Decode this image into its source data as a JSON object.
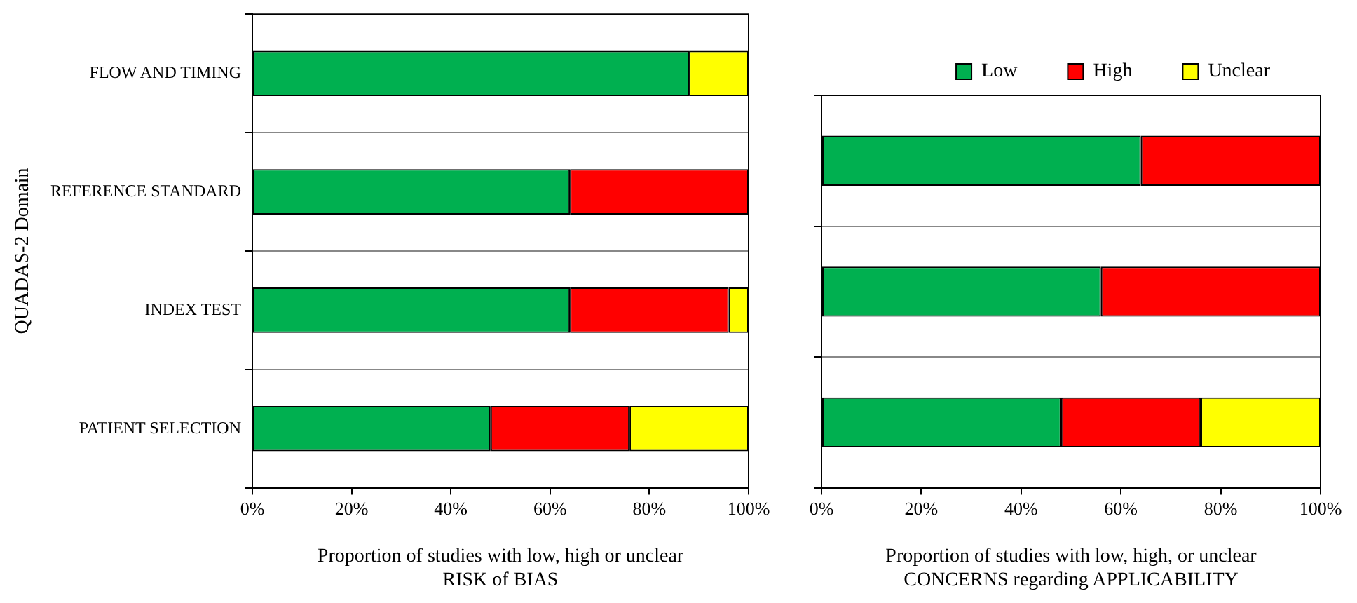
{
  "chart_data": [
    {
      "type": "bar",
      "orientation": "horizontal",
      "stacked": true,
      "xlabel": "Proportion of studies with low, high or unclear\nRISK of BIAS",
      "ylabel": "QUADAS-2 Domain",
      "categories": [
        "FLOW AND TIMING",
        "REFERENCE STANDARD",
        "INDEX TEST",
        "PATIENT SELECTION"
      ],
      "series": [
        {
          "color": "#00b050",
          "values": [
            88,
            64,
            64,
            48
          ]
        },
        {
          "color": "#ff0000",
          "values": [
            null,
            36,
            32,
            28
          ]
        },
        {
          "color": "#ffff00",
          "values": [
            12,
            null,
            4,
            24
          ]
        }
      ],
      "xlim": [
        0,
        100
      ],
      "xticks": [
        {
          "value": 0,
          "label": "0%"
        },
        {
          "value": 20,
          "label": "20%"
        },
        {
          "value": 40,
          "label": "40%"
        },
        {
          "value": 60,
          "label": "60%"
        },
        {
          "value": 80,
          "label": "80%"
        },
        {
          "value": 100,
          "label": "100%"
        }
      ],
      "grid": "y",
      "legend": false
    },
    {
      "type": "bar",
      "orientation": "horizontal",
      "stacked": true,
      "xlabel": "Proportion of studies with low, high, or unclear\nCONCERNS regarding APPLICABILITY",
      "categories": [
        null,
        null,
        null
      ],
      "series": [
        {
          "name": "Low",
          "color": "#00b050",
          "values": [
            64,
            56,
            48
          ]
        },
        {
          "name": "High",
          "color": "#ff0000",
          "values": [
            36,
            44,
            28
          ]
        },
        {
          "name": "Unclear",
          "color": "#ffff00",
          "values": [
            null,
            null,
            24
          ]
        }
      ],
      "xlim": [
        0,
        100
      ],
      "xticks": [
        {
          "value": 0,
          "label": "0%"
        },
        {
          "value": 20,
          "label": "20%"
        },
        {
          "value": 40,
          "label": "40%"
        },
        {
          "value": 60,
          "label": "60%"
        },
        {
          "value": 80,
          "label": "80%"
        },
        {
          "value": 100,
          "label": "100%"
        }
      ],
      "grid": "y",
      "legend": "top right",
      "tick_labels": "x"
    }
  ]
}
